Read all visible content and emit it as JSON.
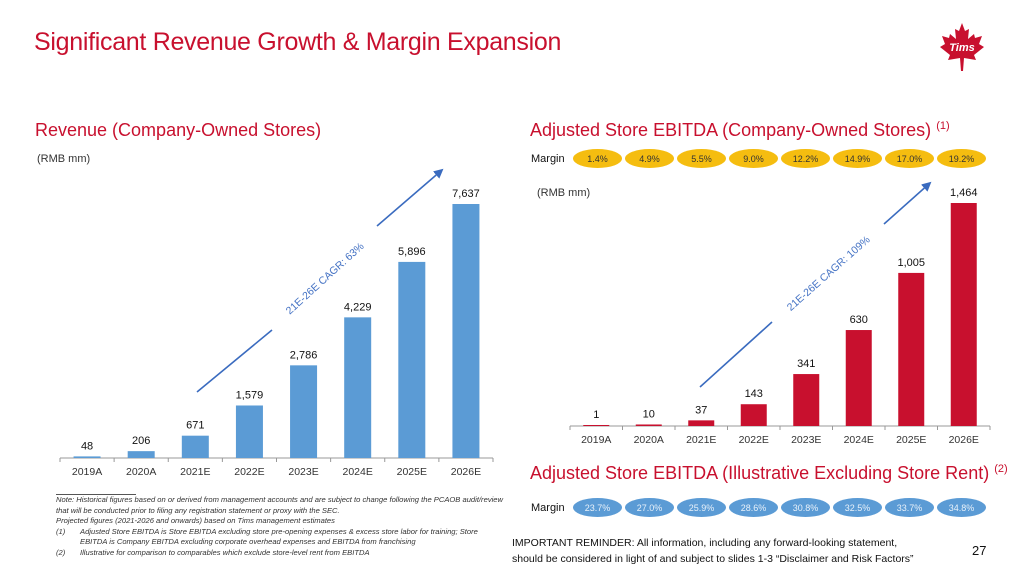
{
  "slide": {
    "title": "Significant Revenue Growth & Margin Expansion",
    "logo_text": "Tims",
    "page_number": "27",
    "reminder_line1": "IMPORTANT REMINDER: All information, including any forward-looking statement,",
    "reminder_line2": "should be considered in light of and subject to slides 1-3 “Disclaimer and Risk Factors”",
    "colors": {
      "brand_red": "#c8102e",
      "revenue_blue": "#5b9bd5",
      "ebitda_red": "#c8102e",
      "pill_yellow": "#f5bd10",
      "pill_blue": "#5b9bd5",
      "arrow_blue": "#3a6bbf"
    }
  },
  "notes": {
    "note": "Note: Historical figures based on or derived from management accounts and are subject to change following the PCAOB audit/review that will be conducted prior to filing any registration statement or proxy with the SEC.",
    "projected": "Projected figures (2021-2026 and onwards) based on Tims management estimates",
    "fn1_num": "(1)",
    "fn1_text": "Adjusted Store EBITDA is Store EBITDA excluding store pre-opening expenses & excess store labor for training; Store EBITDA is Company EBITDA excluding corporate overhead expenses and EBITDA from franchising",
    "fn2_num": "(2)",
    "fn2_text": "Illustrative for comparison to comparables which exclude store-level rent from EBITDA"
  },
  "revenue_panel": {
    "title": "Revenue (Company-Owned Stores)",
    "unit": "(RMB mm)"
  },
  "ebitda_panel": {
    "title": "Adjusted Store EBITDA (Company-Owned Stores)",
    "title_sup": "(1)",
    "unit": "(RMB mm)",
    "margin_label": "Margin",
    "margins": [
      "1.4%",
      "4.9%",
      "5.5%",
      "9.0%",
      "12.2%",
      "14.9%",
      "17.0%",
      "19.2%"
    ]
  },
  "ex_rent_panel": {
    "title": "Adjusted Store EBITDA (Illustrative Excluding Store Rent)",
    "title_sup": "(2)",
    "margin_label": "Margin",
    "margins": [
      "23.7%",
      "27.0%",
      "25.9%",
      "28.6%",
      "30.8%",
      "32.5%",
      "33.7%",
      "34.8%"
    ]
  },
  "chart_data": [
    {
      "type": "bar",
      "title": "Revenue (Company-Owned Stores)",
      "ylabel": "(RMB mm)",
      "xlabel": "",
      "categories": [
        "2019A",
        "2020A",
        "2021E",
        "2022E",
        "2023E",
        "2024E",
        "2025E",
        "2026E"
      ],
      "values": [
        48,
        206,
        671,
        1579,
        2786,
        4229,
        5896,
        7637
      ],
      "labels": [
        "48",
        "206",
        "671",
        "1,579",
        "2,786",
        "4,229",
        "5,896",
        "7,637"
      ],
      "annotation": "21E-26E CAGR: 63%",
      "ylim": [
        0,
        7637
      ],
      "grid": false,
      "legend": "none"
    },
    {
      "type": "bar",
      "title": "Adjusted Store EBITDA (Company-Owned Stores)",
      "ylabel": "(RMB mm)",
      "xlabel": "",
      "categories": [
        "2019A",
        "2020A",
        "2021E",
        "2022E",
        "2023E",
        "2024E",
        "2025E",
        "2026E"
      ],
      "values": [
        1,
        10,
        37,
        143,
        341,
        630,
        1005,
        1464
      ],
      "labels": [
        "1",
        "10",
        "37",
        "143",
        "341",
        "630",
        "1,005",
        "1,464"
      ],
      "annotation": "21E-26E CAGR: 109%",
      "ylim": [
        0,
        1464
      ],
      "grid": false,
      "legend": "none"
    }
  ]
}
